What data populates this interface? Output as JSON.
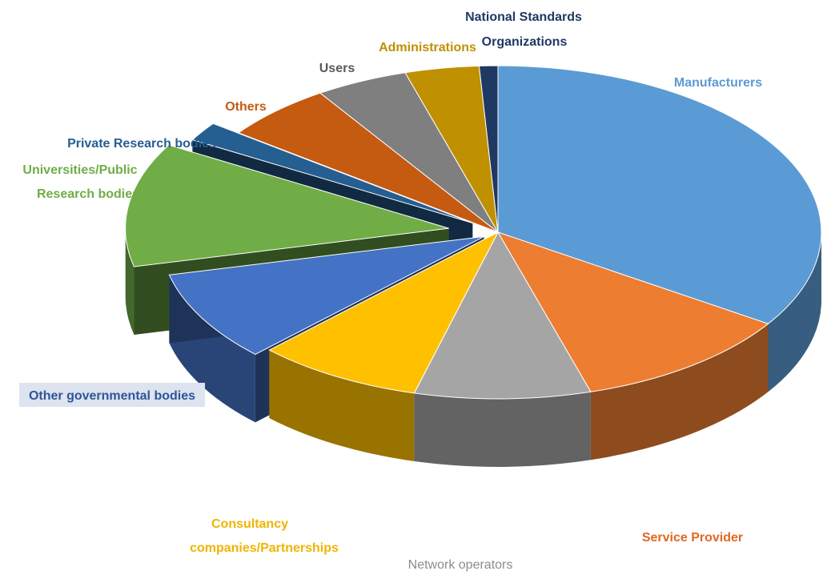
{
  "chart_data": {
    "type": "pie",
    "style": "3d-exploded",
    "title": "",
    "slices": [
      {
        "label": "Manufacturers",
        "value": 37,
        "color": "#5b9bd5",
        "label_color": "#5b9bd5"
      },
      {
        "label": "Service Provider",
        "value": 12,
        "color": "#ed7d31",
        "label_color": "#d9661c"
      },
      {
        "label": "Network operators",
        "value": 9.5,
        "color": "#a5a5a5",
        "label_color": "#8c8c8c"
      },
      {
        "label": "Consultancy companies/Partnerships",
        "value": 9,
        "color": "#ffc000",
        "label_color": "#f0b400"
      },
      {
        "label": "Other governmental bodies",
        "value": 9.5,
        "color": "#4472c4",
        "label_color": "#2f5597"
      },
      {
        "label": "Universities/Public Research bodies",
        "value": 13,
        "color": "#70ad47",
        "label_color": "#70ad47"
      },
      {
        "label": "Private Research bodies",
        "value": 2,
        "color": "#255e91",
        "label_color": "#255e91"
      },
      {
        "label": "Others",
        "value": 6,
        "color": "#c55a11",
        "label_color": "#c55a11"
      },
      {
        "label": "Users",
        "value": 5,
        "color": "#7f7f7f",
        "label_color": "#595959"
      },
      {
        "label": "Administrations",
        "value": 4,
        "color": "#bf9000",
        "label_color": "#bf9000"
      },
      {
        "label": "National Standards Organizations",
        "value": 1,
        "color": "#1f3864",
        "label_color": "#1f3864"
      }
    ],
    "labels": {
      "manufacturers": "Manufacturers",
      "service_provider": "Service Provider",
      "network_operators": "Network operators",
      "consultancy_line1": "Consultancy",
      "consultancy_line2": "companies/Partnerships",
      "other_gov": "Other governmental bodies",
      "universities_line1": "Universities/Public",
      "universities_line2": "Research bodies",
      "private_research": "Private Research bodies",
      "others": "Others",
      "users": "Users",
      "administrations": "Administrations",
      "nso_line1": "National Standards",
      "nso_line2": "Organizations"
    },
    "legend": "none"
  }
}
